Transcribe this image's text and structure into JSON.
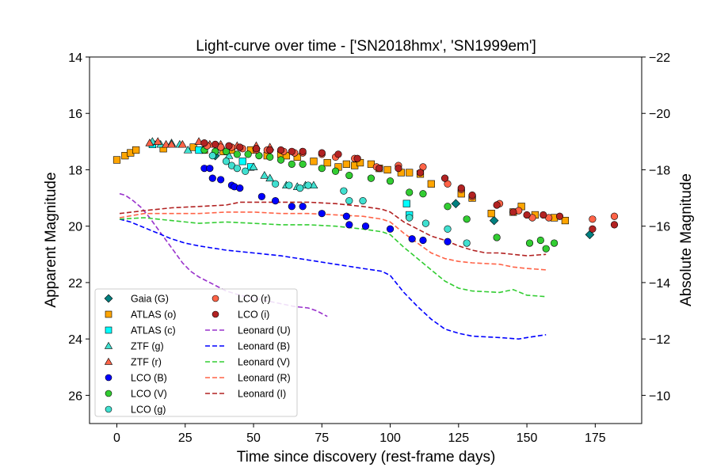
{
  "chart_data": {
    "type": "scatter",
    "title": "Light-curve over time - ['SN2018hmx', 'SN1999em']",
    "xlabel": "Time since discovery (rest-frame days)",
    "ylabel": "Apparent Magnitude",
    "ylabel_right": "Absolute Magnitude",
    "xlim": [
      -10,
      192
    ],
    "ylim": [
      27,
      14
    ],
    "ylim_right": [
      -9,
      -22
    ],
    "x_ticks": [
      0,
      25,
      50,
      75,
      100,
      125,
      150,
      175
    ],
    "y_ticks": [
      14,
      16,
      18,
      20,
      22,
      24,
      26
    ],
    "y_ticks_right": [
      -22,
      -20,
      -18,
      -16,
      -14,
      -12,
      -10
    ],
    "grid": false,
    "legend_position": "lower-left",
    "series": [
      {
        "name": "Gaia (G)",
        "marker": "diamond",
        "color": "#008080",
        "points": [
          [
            36,
            17.5
          ],
          [
            124,
            19.2
          ],
          [
            138,
            19.8
          ],
          [
            173,
            20.3
          ]
        ]
      },
      {
        "name": "ATLAS (o)",
        "marker": "square",
        "color": "#ffa500",
        "points": [
          [
            0,
            17.65
          ],
          [
            3,
            17.5
          ],
          [
            5,
            17.4
          ],
          [
            7,
            17.3
          ],
          [
            17,
            17.25
          ],
          [
            28,
            17.2
          ],
          [
            32,
            17.3
          ],
          [
            39,
            17.35
          ],
          [
            42,
            17.3
          ],
          [
            49,
            17.3
          ],
          [
            55,
            17.5
          ],
          [
            60,
            17.45
          ],
          [
            62,
            17.5
          ],
          [
            66,
            17.55
          ],
          [
            72,
            17.7
          ],
          [
            77,
            17.75
          ],
          [
            81,
            17.9
          ],
          [
            84,
            17.8
          ],
          [
            87,
            17.85
          ],
          [
            89,
            17.75
          ],
          [
            93,
            17.8
          ],
          [
            96,
            17.95
          ],
          [
            99,
            18.0
          ],
          [
            104,
            18.1
          ],
          [
            107,
            18.1
          ],
          [
            111,
            18.15
          ],
          [
            115,
            18.5
          ],
          [
            126,
            18.85
          ],
          [
            130,
            19.0
          ],
          [
            137,
            19.55
          ],
          [
            145,
            19.5
          ],
          [
            148,
            19.3
          ],
          [
            153,
            19.6
          ],
          [
            160,
            19.7
          ],
          [
            164,
            19.8
          ]
        ]
      },
      {
        "name": "ATLAS (c)",
        "marker": "square",
        "color": "#00ffff",
        "points": [
          [
            13,
            17.1
          ],
          [
            30,
            17.3
          ],
          [
            46,
            17.7
          ],
          [
            49,
            17.9
          ],
          [
            106,
            19.2
          ],
          [
            107,
            19.6
          ]
        ]
      },
      {
        "name": "ZTF (g)",
        "marker": "triangle",
        "color": "#40e0d0",
        "points": [
          [
            13,
            17.0
          ],
          [
            16,
            17.1
          ],
          [
            20,
            17.05
          ],
          [
            23,
            17.1
          ],
          [
            26,
            17.3
          ],
          [
            36,
            17.3
          ],
          [
            41,
            17.5
          ],
          [
            50,
            17.9
          ],
          [
            54,
            18.2
          ],
          [
            56,
            18.3
          ],
          [
            62,
            18.55
          ],
          [
            66,
            18.6
          ],
          [
            69,
            18.55
          ],
          [
            72,
            18.55
          ]
        ]
      },
      {
        "name": "ZTF (r)",
        "marker": "triangle",
        "color": "#ff6347",
        "points": [
          [
            12,
            17.05
          ],
          [
            15,
            17.0
          ],
          [
            18,
            17.1
          ],
          [
            20,
            17.1
          ],
          [
            24,
            17.1
          ],
          [
            30,
            17.0
          ],
          [
            34,
            17.1
          ],
          [
            38,
            17.1
          ],
          [
            44,
            17.15
          ],
          [
            51,
            17.15
          ],
          [
            56,
            17.2
          ]
        ]
      },
      {
        "name": "LCO (B)",
        "marker": "circle",
        "color": "#0000ff",
        "points": [
          [
            32,
            17.95
          ],
          [
            34,
            17.95
          ],
          [
            35,
            18.3
          ],
          [
            38,
            18.35
          ],
          [
            42,
            18.55
          ],
          [
            43,
            18.6
          ],
          [
            45,
            18.65
          ],
          [
            53,
            18.95
          ],
          [
            58,
            19.1
          ],
          [
            64,
            19.3
          ],
          [
            68,
            19.3
          ],
          [
            75,
            19.55
          ],
          [
            84,
            19.65
          ],
          [
            85,
            19.95
          ],
          [
            91,
            20.0
          ],
          [
            100,
            20.1
          ],
          [
            108,
            20.45
          ],
          [
            112,
            20.5
          ],
          [
            121,
            20.55
          ]
        ]
      },
      {
        "name": "LCO (V)",
        "marker": "circle",
        "color": "#32cd32",
        "points": [
          [
            32,
            17.3
          ],
          [
            36,
            17.35
          ],
          [
            40,
            17.35
          ],
          [
            44,
            17.45
          ],
          [
            48,
            17.45
          ],
          [
            52,
            17.5
          ],
          [
            56,
            17.55
          ],
          [
            60,
            17.65
          ],
          [
            64,
            17.8
          ],
          [
            68,
            17.8
          ],
          [
            75,
            17.95
          ],
          [
            80,
            18.05
          ],
          [
            85,
            18.2
          ],
          [
            93,
            18.3
          ],
          [
            100,
            18.4
          ],
          [
            107,
            18.8
          ],
          [
            112,
            18.85
          ],
          [
            121,
            19.3
          ],
          [
            128,
            19.75
          ],
          [
            139,
            20.4
          ],
          [
            151,
            20.6
          ],
          [
            155,
            20.5
          ],
          [
            157,
            20.8
          ],
          [
            160,
            20.6
          ]
        ]
      },
      {
        "name": "LCO (g)",
        "marker": "circle",
        "color": "#40e0d0",
        "points": [
          [
            35,
            17.5
          ],
          [
            40,
            17.7
          ],
          [
            42,
            17.85
          ],
          [
            44,
            17.95
          ],
          [
            47,
            18.05
          ],
          [
            58,
            18.5
          ],
          [
            63,
            18.55
          ],
          [
            67,
            18.65
          ],
          [
            70,
            18.55
          ],
          [
            83,
            18.75
          ],
          [
            85,
            19.1
          ],
          [
            90,
            19.1
          ],
          [
            107,
            19.7
          ],
          [
            113,
            19.9
          ],
          [
            121,
            20.1
          ],
          [
            128,
            20.6
          ]
        ]
      },
      {
        "name": "LCO (r)",
        "marker": "circle",
        "color": "#ff6347",
        "points": [
          [
            33,
            17.15
          ],
          [
            38,
            17.2
          ],
          [
            42,
            17.2
          ],
          [
            46,
            17.25
          ],
          [
            51,
            17.3
          ],
          [
            55,
            17.3
          ],
          [
            61,
            17.35
          ],
          [
            65,
            17.4
          ],
          [
            68,
            17.4
          ],
          [
            75,
            17.45
          ],
          [
            80,
            17.55
          ],
          [
            87,
            17.6
          ],
          [
            95,
            17.9
          ],
          [
            103,
            17.85
          ],
          [
            112,
            17.9
          ],
          [
            121,
            18.5
          ],
          [
            126,
            18.7
          ],
          [
            130,
            18.95
          ],
          [
            140,
            19.2
          ],
          [
            147,
            19.45
          ],
          [
            152,
            19.7
          ],
          [
            158,
            19.7
          ],
          [
            174,
            19.75
          ],
          [
            182,
            19.65
          ]
        ]
      },
      {
        "name": "LCO (i)",
        "marker": "circle",
        "color": "#b22222",
        "points": [
          [
            32,
            17.05
          ],
          [
            36,
            17.1
          ],
          [
            41,
            17.15
          ],
          [
            45,
            17.2
          ],
          [
            51,
            17.25
          ],
          [
            56,
            17.3
          ],
          [
            60,
            17.3
          ],
          [
            64,
            17.35
          ],
          [
            68,
            17.35
          ],
          [
            75,
            17.4
          ],
          [
            81,
            17.45
          ],
          [
            88,
            17.6
          ],
          [
            96,
            17.95
          ],
          [
            103,
            17.95
          ],
          [
            111,
            18.1
          ],
          [
            120,
            18.3
          ],
          [
            126,
            18.65
          ],
          [
            130,
            18.9
          ],
          [
            139,
            19.25
          ],
          [
            145,
            19.5
          ],
          [
            150,
            19.6
          ],
          [
            156,
            19.6
          ],
          [
            162,
            19.65
          ],
          [
            174,
            20.1
          ],
          [
            182,
            19.95
          ]
        ]
      },
      {
        "name": "Leonard (U)",
        "line": "dashed",
        "color": "#9932cc",
        "points": [
          [
            1,
            18.85
          ],
          [
            3,
            18.9
          ],
          [
            6,
            19.1
          ],
          [
            9,
            19.35
          ],
          [
            12,
            19.7
          ],
          [
            15,
            20.1
          ],
          [
            18,
            20.5
          ],
          [
            21,
            20.9
          ],
          [
            24,
            21.3
          ],
          [
            27,
            21.6
          ],
          [
            30,
            21.8
          ],
          [
            35,
            22.05
          ],
          [
            40,
            22.3
          ],
          [
            45,
            22.45
          ],
          [
            50,
            22.55
          ],
          [
            55,
            22.65
          ],
          [
            60,
            22.75
          ],
          [
            65,
            22.85
          ],
          [
            70,
            22.9
          ],
          [
            73,
            23.0
          ],
          [
            77,
            23.2
          ]
        ]
      },
      {
        "name": "Leonard (B)",
        "line": "dashed",
        "color": "#0000ff",
        "points": [
          [
            1,
            19.75
          ],
          [
            5,
            19.85
          ],
          [
            10,
            20.05
          ],
          [
            15,
            20.25
          ],
          [
            20,
            20.45
          ],
          [
            25,
            20.6
          ],
          [
            30,
            20.7
          ],
          [
            40,
            20.85
          ],
          [
            50,
            20.95
          ],
          [
            60,
            21.05
          ],
          [
            70,
            21.2
          ],
          [
            80,
            21.35
          ],
          [
            90,
            21.5
          ],
          [
            97,
            21.6
          ],
          [
            100,
            21.75
          ],
          [
            105,
            22.35
          ],
          [
            110,
            22.85
          ],
          [
            115,
            23.3
          ],
          [
            120,
            23.65
          ],
          [
            125,
            23.8
          ],
          [
            130,
            23.9
          ],
          [
            140,
            23.95
          ],
          [
            147,
            24.0
          ],
          [
            150,
            23.95
          ],
          [
            157,
            23.85
          ]
        ]
      },
      {
        "name": "Leonard (V)",
        "line": "dashed",
        "color": "#32cd32",
        "points": [
          [
            1,
            19.75
          ],
          [
            10,
            19.7
          ],
          [
            20,
            19.8
          ],
          [
            30,
            19.9
          ],
          [
            40,
            19.85
          ],
          [
            50,
            19.9
          ],
          [
            60,
            19.95
          ],
          [
            70,
            19.95
          ],
          [
            80,
            20.0
          ],
          [
            90,
            20.1
          ],
          [
            97,
            20.2
          ],
          [
            100,
            20.3
          ],
          [
            105,
            20.75
          ],
          [
            110,
            21.15
          ],
          [
            115,
            21.55
          ],
          [
            120,
            21.95
          ],
          [
            125,
            22.2
          ],
          [
            130,
            22.3
          ],
          [
            140,
            22.35
          ],
          [
            145,
            22.25
          ],
          [
            150,
            22.45
          ],
          [
            157,
            22.5
          ]
        ]
      },
      {
        "name": "Leonard (R)",
        "line": "dashed",
        "color": "#ff6347",
        "points": [
          [
            1,
            19.7
          ],
          [
            10,
            19.55
          ],
          [
            20,
            19.55
          ],
          [
            30,
            19.55
          ],
          [
            40,
            19.5
          ],
          [
            50,
            19.5
          ],
          [
            60,
            19.55
          ],
          [
            70,
            19.55
          ],
          [
            80,
            19.6
          ],
          [
            90,
            19.65
          ],
          [
            97,
            19.75
          ],
          [
            100,
            19.85
          ],
          [
            105,
            20.25
          ],
          [
            110,
            20.6
          ],
          [
            115,
            20.95
          ],
          [
            120,
            21.15
          ],
          [
            125,
            21.25
          ],
          [
            130,
            21.3
          ],
          [
            140,
            21.35
          ],
          [
            145,
            21.45
          ],
          [
            150,
            21.5
          ],
          [
            157,
            21.55
          ]
        ]
      },
      {
        "name": "Leonard (I)",
        "line": "dashed",
        "color": "#b22222",
        "points": [
          [
            1,
            19.55
          ],
          [
            10,
            19.45
          ],
          [
            20,
            19.35
          ],
          [
            30,
            19.3
          ],
          [
            40,
            19.25
          ],
          [
            45,
            19.15
          ],
          [
            50,
            19.15
          ],
          [
            60,
            19.15
          ],
          [
            70,
            19.15
          ],
          [
            80,
            19.2
          ],
          [
            90,
            19.3
          ],
          [
            97,
            19.4
          ],
          [
            100,
            19.5
          ],
          [
            105,
            19.85
          ],
          [
            110,
            20.1
          ],
          [
            115,
            20.35
          ],
          [
            120,
            20.5
          ],
          [
            125,
            20.7
          ],
          [
            130,
            20.85
          ],
          [
            135,
            20.95
          ],
          [
            140,
            20.95
          ],
          [
            145,
            21.0
          ],
          [
            150,
            21.05
          ],
          [
            157,
            21.0
          ]
        ]
      }
    ]
  }
}
